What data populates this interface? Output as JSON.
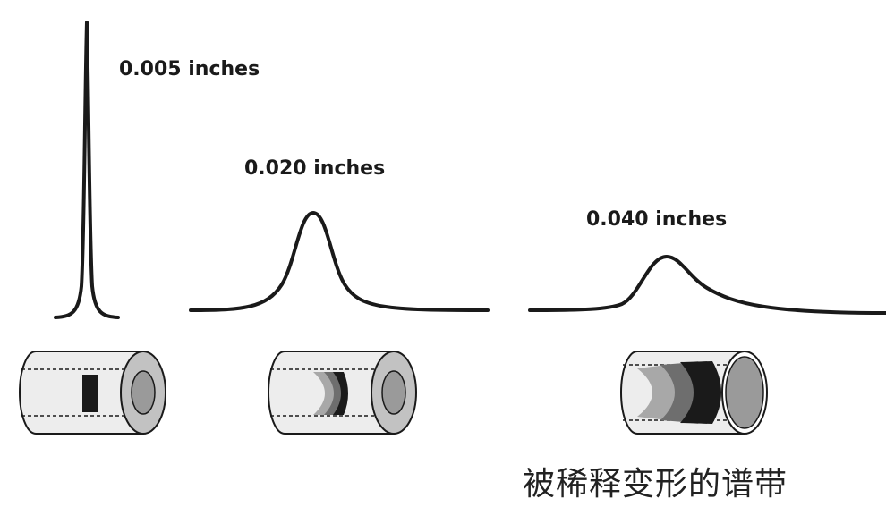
{
  "peaks": [
    {
      "label": "0.005 inches"
    },
    {
      "label": "0.020 inches"
    },
    {
      "label": "0.040 inches"
    }
  ],
  "caption": "被稀释变形的谱带",
  "colors": {
    "stroke": "#1a1a1a",
    "tube_body": "#ededed",
    "tube_ring": "#c2c2c2",
    "tube_bore": "#9a9a9a",
    "band_dark": "#1a1a1a",
    "band_mid": "#6e6e6e",
    "band_light": "#a8a8a8"
  }
}
